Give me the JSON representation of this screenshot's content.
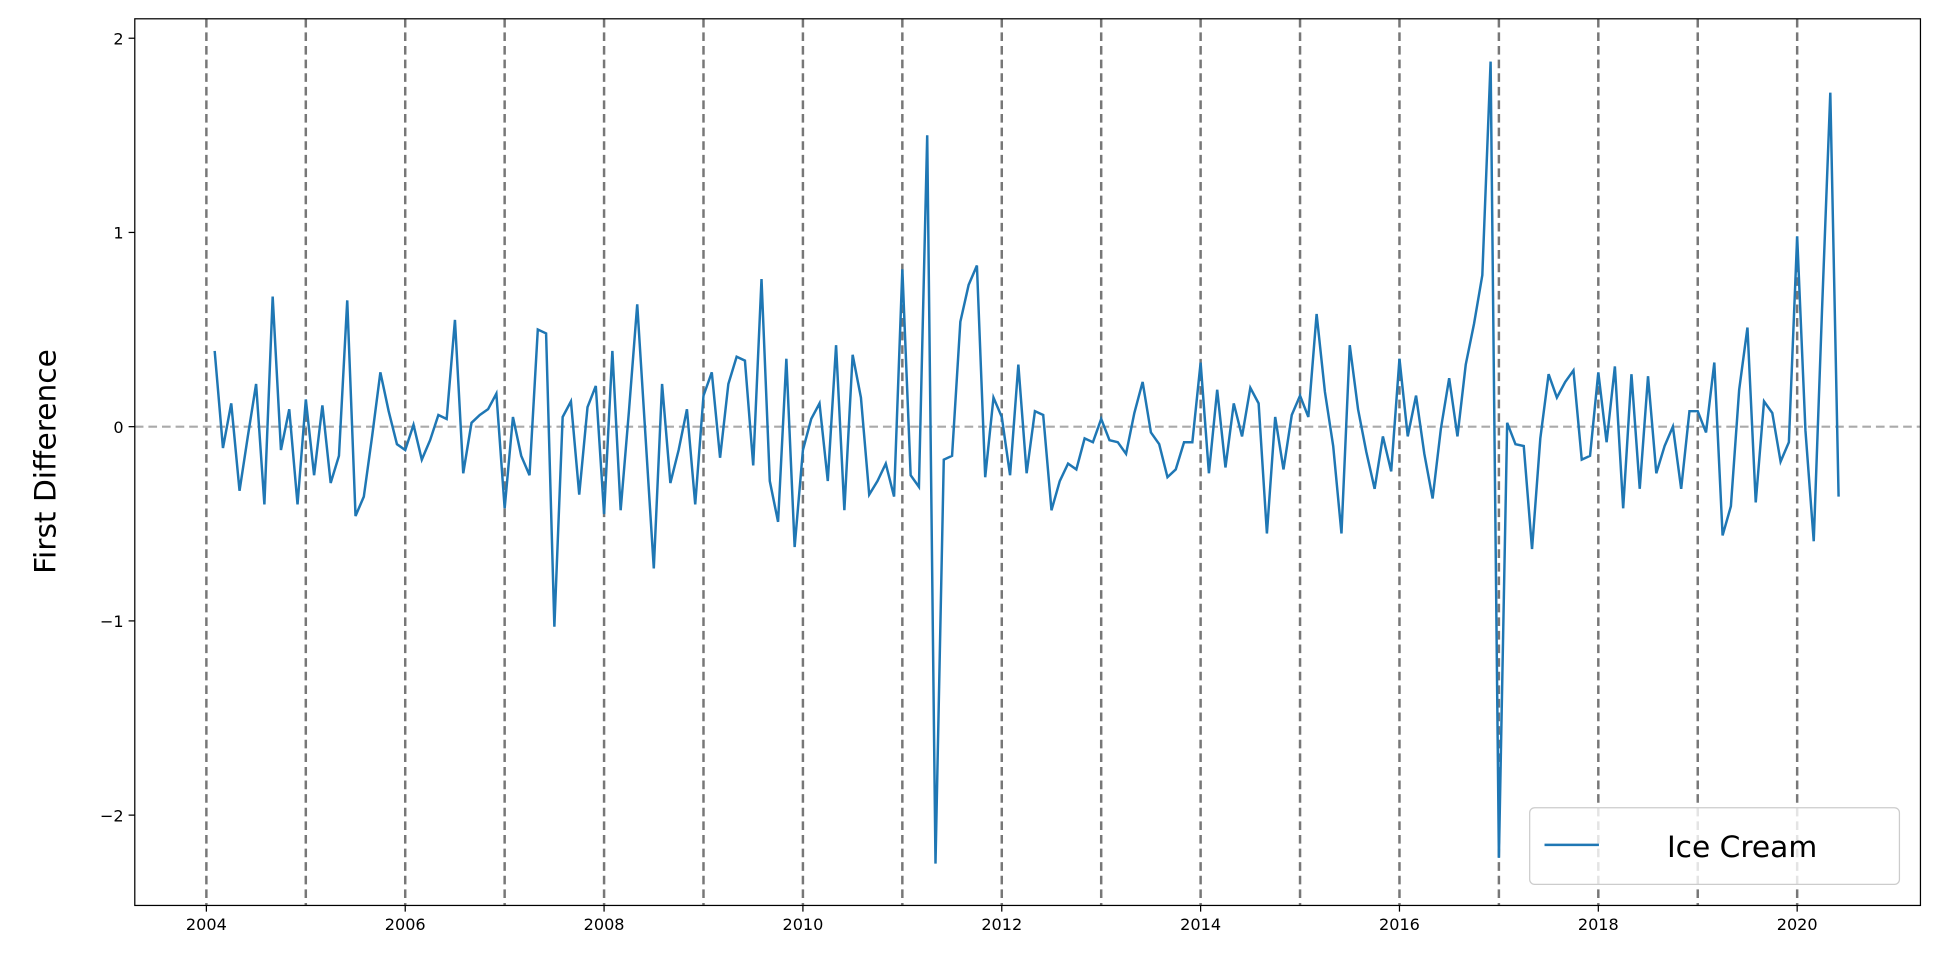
{
  "chart_data": {
    "type": "line",
    "title": "",
    "xlabel": "",
    "ylabel": "First Difference",
    "xlim": [
      2003.28,
      2021.24
    ],
    "ylim": [
      -2.465,
      2.1
    ],
    "x_ticks": [
      "2004",
      "2006",
      "2008",
      "2010",
      "2012",
      "2014",
      "2016",
      "2018",
      "2020"
    ],
    "y_ticks": [
      {
        "value": -2,
        "label": "−2"
      },
      {
        "value": -1,
        "label": "−1"
      },
      {
        "value": 0,
        "label": "0"
      },
      {
        "value": 1,
        "label": "1"
      },
      {
        "value": 2,
        "label": "2"
      }
    ],
    "year_markers": [
      2004,
      2005,
      2006,
      2007,
      2008,
      2009,
      2010,
      2011,
      2012,
      2013,
      2014,
      2015,
      2016,
      2017,
      2018,
      2019,
      2020
    ],
    "zero_line": 0,
    "grid": false,
    "legend_position": "bottom-right",
    "series": [
      {
        "name": "Ice Cream",
        "color": "#1f77b4",
        "start": "2004-02",
        "frequency": "monthly",
        "values": [
          0.39,
          -0.11,
          0.12,
          -0.33,
          -0.05,
          0.22,
          -0.4,
          0.67,
          -0.12,
          0.09,
          -0.4,
          0.14,
          -0.25,
          0.11,
          -0.29,
          -0.15,
          0.65,
          -0.46,
          -0.36,
          -0.05,
          0.28,
          0.08,
          -0.09,
          -0.12,
          0.01,
          -0.17,
          -0.07,
          0.06,
          0.04,
          0.55,
          -0.24,
          0.02,
          0.06,
          0.09,
          0.17,
          -0.42,
          0.05,
          -0.15,
          -0.25,
          0.5,
          0.48,
          -1.03,
          0.05,
          0.13,
          -0.35,
          0.1,
          0.21,
          -0.45,
          0.39,
          -0.43,
          0.08,
          0.63,
          -0.05,
          -0.73,
          0.22,
          -0.29,
          -0.12,
          0.09,
          -0.4,
          0.16,
          0.28,
          -0.16,
          0.22,
          0.36,
          0.34,
          -0.2,
          0.76,
          -0.28,
          -0.49,
          0.35,
          -0.62,
          -0.12,
          0.04,
          0.12,
          -0.28,
          0.42,
          -0.43,
          0.37,
          0.15,
          -0.35,
          -0.28,
          -0.19,
          -0.36,
          0.81,
          -0.25,
          -0.31,
          1.5,
          -2.25,
          -0.17,
          -0.15,
          0.54,
          0.73,
          0.83,
          -0.26,
          0.15,
          0.05,
          -0.25,
          0.32,
          -0.24,
          0.08,
          0.06,
          -0.43,
          -0.28,
          -0.19,
          -0.22,
          -0.06,
          -0.08,
          0.04,
          -0.07,
          -0.08,
          -0.14,
          0.07,
          0.23,
          -0.03,
          -0.09,
          -0.26,
          -0.22,
          -0.08,
          -0.08,
          0.33,
          -0.24,
          0.19,
          -0.21,
          0.12,
          -0.05,
          0.2,
          0.12,
          -0.55,
          0.05,
          -0.22,
          0.06,
          0.16,
          0.05,
          0.58,
          0.18,
          -0.1,
          -0.55,
          0.42,
          0.09,
          -0.13,
          -0.32,
          -0.05,
          -0.23,
          0.35,
          -0.05,
          0.16,
          -0.14,
          -0.37,
          -0.01,
          0.25,
          -0.05,
          0.32,
          0.53,
          0.78,
          1.88,
          -2.22,
          0.02,
          -0.09,
          -0.1,
          -0.63,
          -0.06,
          0.27,
          0.15,
          0.23,
          0.29,
          -0.17,
          -0.15,
          0.28,
          -0.08,
          0.31,
          -0.42,
          0.27,
          -0.32,
          0.26,
          -0.24,
          -0.1,
          0.0,
          -0.32,
          0.08,
          0.08,
          -0.03,
          0.33,
          -0.56,
          -0.41,
          0.19,
          0.51,
          -0.39,
          0.13,
          0.07,
          -0.18,
          -0.08,
          0.98,
          -0.02,
          -0.59,
          0.6,
          1.72,
          -0.36
        ]
      }
    ]
  }
}
